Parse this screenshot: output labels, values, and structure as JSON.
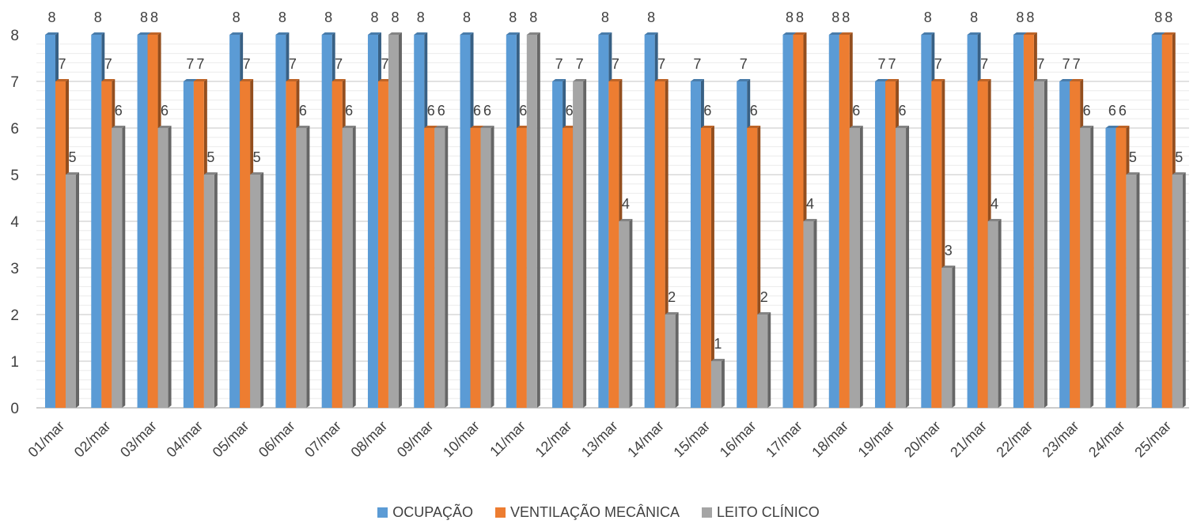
{
  "chart_data": {
    "type": "bar",
    "categories": [
      "01/mar",
      "02/mar",
      "03/mar",
      "04/mar",
      "05/mar",
      "06/mar",
      "07/mar",
      "08/mar",
      "09/mar",
      "10/mar",
      "11/mar",
      "12/mar",
      "13/mar",
      "14/mar",
      "15/mar",
      "16/mar",
      "17/mar",
      "18/mar",
      "19/mar",
      "20/mar",
      "21/mar",
      "22/mar",
      "23/mar",
      "24/mar",
      "25/mar"
    ],
    "series": [
      {
        "name": "OCUPAÇÃO",
        "color": "#5B9BD5",
        "values": [
          8,
          8,
          8,
          7,
          8,
          8,
          8,
          8,
          8,
          8,
          8,
          7,
          8,
          8,
          7,
          7,
          8,
          8,
          7,
          8,
          8,
          8,
          7,
          6,
          8
        ]
      },
      {
        "name": "VENTILAÇÃO MECÂNICA",
        "color": "#ED7D31",
        "values": [
          7,
          7,
          8,
          7,
          7,
          7,
          7,
          7,
          6,
          6,
          6,
          6,
          7,
          7,
          6,
          6,
          8,
          8,
          7,
          7,
          7,
          8,
          7,
          6,
          8
        ]
      },
      {
        "name": "LEITO CLÍNICO",
        "color": "#A5A5A5",
        "values": [
          5,
          6,
          6,
          5,
          5,
          6,
          6,
          8,
          6,
          6,
          8,
          7,
          4,
          2,
          1,
          2,
          4,
          6,
          6,
          3,
          4,
          7,
          6,
          5,
          5
        ]
      }
    ],
    "ylim": [
      0,
      8
    ],
    "yticks": [
      0,
      1,
      2,
      3,
      4,
      5,
      6,
      7,
      8
    ],
    "grid": true,
    "legend_position": "bottom",
    "data_labels": true
  }
}
